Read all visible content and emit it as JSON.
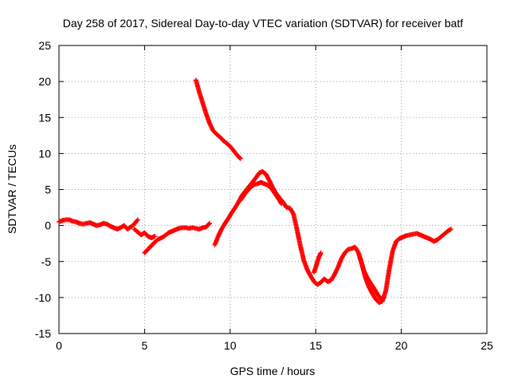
{
  "chart_data": {
    "type": "scatter",
    "title": "Day 258 of 2017, Sidereal Day-to-day VTEC variation (SDTVAR) for receiver batf",
    "xlabel": "GPS time / hours",
    "ylabel": "SDTVAR / TECUs",
    "xlim": [
      0,
      25
    ],
    "ylim": [
      -15,
      25
    ],
    "x_ticks": [
      0,
      5,
      10,
      15,
      20,
      25
    ],
    "y_ticks": [
      -15,
      -10,
      -5,
      0,
      5,
      10,
      15,
      20,
      25
    ],
    "grid": true,
    "marker": "+",
    "series_color": "#ff0000",
    "series": [
      {
        "name": "SDTVAR segment 1",
        "x": [
          0.0,
          0.2,
          0.4,
          0.6,
          0.8,
          1.0,
          1.2,
          1.4,
          1.6,
          1.8,
          2.0,
          2.2,
          2.4,
          2.6,
          2.8,
          3.0,
          3.2,
          3.4,
          3.6,
          3.8,
          4.0,
          4.2,
          4.4,
          4.6
        ],
        "y": [
          0.5,
          0.7,
          0.8,
          0.8,
          0.6,
          0.5,
          0.3,
          0.2,
          0.3,
          0.4,
          0.2,
          0.0,
          0.1,
          0.3,
          0.2,
          -0.1,
          -0.3,
          -0.5,
          -0.3,
          0.0,
          -0.5,
          -0.2,
          0.2,
          0.8
        ]
      },
      {
        "name": "SDTVAR segment 2",
        "x": [
          4.4,
          4.6,
          4.8,
          5.0,
          5.2,
          5.4,
          5.6
        ],
        "y": [
          -0.5,
          -0.9,
          -1.3,
          -1.0,
          -1.5,
          -1.7,
          -1.5
        ]
      },
      {
        "name": "SDTVAR segment 3",
        "x": [
          5.0,
          5.2,
          5.4,
          5.6,
          5.8,
          6.0,
          6.2,
          6.4,
          6.6,
          6.8,
          7.0,
          7.2,
          7.4,
          7.6,
          7.8,
          8.0,
          8.2,
          8.4,
          8.6,
          8.8
        ],
        "y": [
          -3.8,
          -3.3,
          -2.8,
          -2.3,
          -1.9,
          -1.7,
          -1.4,
          -1.0,
          -0.8,
          -0.6,
          -0.4,
          -0.3,
          -0.3,
          -0.4,
          -0.3,
          -0.4,
          -0.5,
          -0.3,
          -0.2,
          0.3
        ]
      },
      {
        "name": "SDTVAR segment 4",
        "x": [
          8.0,
          8.2,
          8.4,
          8.6,
          8.8,
          9.0,
          9.2,
          9.4,
          9.6,
          9.8,
          10.0,
          10.2,
          10.4,
          10.6
        ],
        "y": [
          20.2,
          18.5,
          17.0,
          15.5,
          14.2,
          13.2,
          12.7,
          12.3,
          11.8,
          11.4,
          11.0,
          10.4,
          9.8,
          9.3
        ]
      },
      {
        "name": "SDTVAR segment 5",
        "x": [
          9.1,
          9.3,
          9.5,
          9.7,
          9.9,
          10.1,
          10.3,
          10.5,
          10.7,
          10.9,
          11.1,
          11.3,
          11.5,
          11.7,
          11.9,
          12.1,
          12.3,
          12.5,
          12.7,
          12.9,
          13.1,
          13.3,
          13.5,
          13.7,
          13.9,
          14.1,
          14.3,
          14.5,
          14.7,
          14.9,
          15.1,
          15.3,
          15.5,
          15.7,
          15.9,
          16.1,
          16.3,
          16.5,
          16.7,
          16.9,
          17.1,
          17.3,
          17.5,
          17.7,
          17.9,
          18.1,
          18.3,
          18.5,
          18.7,
          18.9,
          19.1,
          19.3,
          19.5,
          19.7,
          19.9,
          20.1,
          20.3,
          20.5,
          20.7,
          20.9,
          21.1,
          21.3,
          21.5,
          21.7,
          21.9,
          22.1,
          22.3,
          22.5,
          22.7,
          22.9
        ],
        "y": [
          -2.7,
          -1.5,
          -0.5,
          0.3,
          1.0,
          1.8,
          2.5,
          3.3,
          4.2,
          4.8,
          5.4,
          6.0,
          6.6,
          7.3,
          7.5,
          7.1,
          6.2,
          5.2,
          4.4,
          3.8,
          3.2,
          2.5,
          2.4,
          1.6,
          -0.5,
          -2.8,
          -4.8,
          -6.1,
          -7.0,
          -7.8,
          -8.2,
          -7.9,
          -7.4,
          -7.8,
          -7.6,
          -6.8,
          -5.8,
          -4.6,
          -3.8,
          -3.3,
          -3.2,
          -3.0,
          -3.8,
          -5.4,
          -7.2,
          -8.5,
          -9.4,
          -10.2,
          -10.7,
          -10.5,
          -9.0,
          -6.0,
          -3.5,
          -2.2,
          -1.8,
          -1.6,
          -1.4,
          -1.3,
          -1.2,
          -1.1,
          -1.3,
          -1.5,
          -1.7,
          -1.9,
          -2.2,
          -2.0,
          -1.6,
          -1.2,
          -0.8,
          -0.5
        ]
      },
      {
        "name": "SDTVAR segment 6",
        "x": [
          10.6,
          10.8,
          11.0,
          11.2,
          11.4,
          11.6,
          11.8,
          12.0,
          12.2,
          12.4,
          12.6,
          12.8,
          13.0
        ],
        "y": [
          3.5,
          4.2,
          4.8,
          5.3,
          5.7,
          5.8,
          6.0,
          5.8,
          5.6,
          5.2,
          4.5,
          3.8,
          3.0
        ]
      },
      {
        "name": "SDTVAR segment 7",
        "x": [
          14.9,
          15.0,
          15.1,
          15.2,
          15.3
        ],
        "y": [
          -6.5,
          -5.8,
          -5.0,
          -4.3,
          -3.8
        ]
      },
      {
        "name": "SDTVAR segment 8",
        "x": [
          17.6,
          17.8,
          18.0,
          18.2,
          18.4,
          18.6,
          18.8,
          19.0
        ],
        "y": [
          -4.5,
          -6.2,
          -7.2,
          -8.0,
          -8.7,
          -9.5,
          -10.2,
          -10.0
        ]
      }
    ]
  }
}
